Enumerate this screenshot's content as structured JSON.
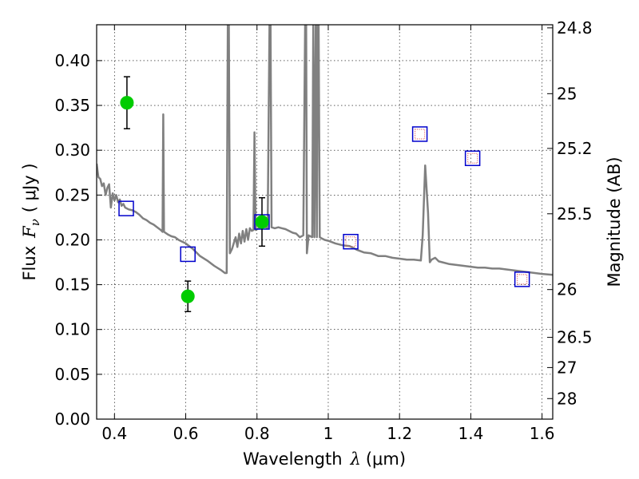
{
  "chart_data": {
    "type": "scatter",
    "xlabel_prefix": "Wavelength",
    "xlabel_symbol": "λ",
    "xlabel_unit": "(μm)",
    "ylabel_prefix": "Flux",
    "ylabel_symbol": "F",
    "ylabel_subscript": "ν",
    "ylabel_unit": "( μJy )",
    "y2label": "Magnitude (AB)",
    "xlim": [
      0.35,
      1.63
    ],
    "ylim": [
      0.0,
      0.44
    ],
    "grid": true,
    "x_ticks": [
      {
        "value": 0.4,
        "label": "0.4"
      },
      {
        "value": 0.6,
        "label": "0.6"
      },
      {
        "value": 0.8,
        "label": "0.8"
      },
      {
        "value": 1.0,
        "label": "1"
      },
      {
        "value": 1.2,
        "label": "1.2"
      },
      {
        "value": 1.4,
        "label": "1.4"
      },
      {
        "value": 1.6,
        "label": "1.6"
      }
    ],
    "y_ticks": [
      {
        "value": 0.0,
        "label": "0.00"
      },
      {
        "value": 0.05,
        "label": "0.05"
      },
      {
        "value": 0.1,
        "label": "0.10"
      },
      {
        "value": 0.15,
        "label": "0.15"
      },
      {
        "value": 0.2,
        "label": "0.20"
      },
      {
        "value": 0.25,
        "label": "0.25"
      },
      {
        "value": 0.3,
        "label": "0.30"
      },
      {
        "value": 0.35,
        "label": "0.35"
      },
      {
        "value": 0.4,
        "label": "0.40"
      }
    ],
    "y2_ticks": [
      {
        "value": 24.8,
        "label": "24.8"
      },
      {
        "value": 25.0,
        "label": "25"
      },
      {
        "value": 25.2,
        "label": "25.2"
      },
      {
        "value": 25.5,
        "label": "25.5"
      },
      {
        "value": 26.0,
        "label": "26"
      },
      {
        "value": 26.5,
        "label": "26.5"
      },
      {
        "value": 27.0,
        "label": "27"
      },
      {
        "value": 28.0,
        "label": "28"
      }
    ],
    "series": [
      {
        "kind": "line",
        "color": "#808080",
        "points": [
          [
            0.35,
            0.285
          ],
          [
            0.355,
            0.27
          ],
          [
            0.36,
            0.268
          ],
          [
            0.365,
            0.26
          ],
          [
            0.37,
            0.263
          ],
          [
            0.375,
            0.25
          ],
          [
            0.38,
            0.258
          ],
          [
            0.385,
            0.262
          ],
          [
            0.39,
            0.236
          ],
          [
            0.395,
            0.252
          ],
          [
            0.4,
            0.244
          ],
          [
            0.405,
            0.25
          ],
          [
            0.41,
            0.242
          ],
          [
            0.415,
            0.245
          ],
          [
            0.42,
            0.238
          ],
          [
            0.425,
            0.24
          ],
          [
            0.43,
            0.236
          ],
          [
            0.44,
            0.234
          ],
          [
            0.45,
            0.233
          ],
          [
            0.46,
            0.231
          ],
          [
            0.47,
            0.228
          ],
          [
            0.48,
            0.224
          ],
          [
            0.49,
            0.222
          ],
          [
            0.5,
            0.219
          ],
          [
            0.51,
            0.217
          ],
          [
            0.52,
            0.214
          ],
          [
            0.53,
            0.211
          ],
          [
            0.535,
            0.209
          ],
          [
            0.537,
            0.34
          ],
          [
            0.539,
            0.209
          ],
          [
            0.55,
            0.206
          ],
          [
            0.56,
            0.204
          ],
          [
            0.57,
            0.203
          ],
          [
            0.58,
            0.2
          ],
          [
            0.6,
            0.196
          ],
          [
            0.62,
            0.19
          ],
          [
            0.64,
            0.182
          ],
          [
            0.66,
            0.177
          ],
          [
            0.68,
            0.171
          ],
          [
            0.7,
            0.166
          ],
          [
            0.71,
            0.163
          ],
          [
            0.715,
            0.163
          ],
          [
            0.718,
            0.44
          ],
          [
            0.721,
            0.44
          ],
          [
            0.724,
            0.185
          ],
          [
            0.73,
            0.19
          ],
          [
            0.74,
            0.203
          ],
          [
            0.745,
            0.192
          ],
          [
            0.75,
            0.207
          ],
          [
            0.755,
            0.196
          ],
          [
            0.76,
            0.21
          ],
          [
            0.765,
            0.198
          ],
          [
            0.77,
            0.212
          ],
          [
            0.775,
            0.2
          ],
          [
            0.78,
            0.213
          ],
          [
            0.785,
            0.21
          ],
          [
            0.79,
            0.211
          ],
          [
            0.793,
            0.32
          ],
          [
            0.796,
            0.211
          ],
          [
            0.8,
            0.212
          ],
          [
            0.81,
            0.214
          ],
          [
            0.82,
            0.215
          ],
          [
            0.83,
            0.213
          ],
          [
            0.835,
            0.44
          ],
          [
            0.838,
            0.44
          ],
          [
            0.841,
            0.214
          ],
          [
            0.85,
            0.213
          ],
          [
            0.86,
            0.214
          ],
          [
            0.87,
            0.213
          ],
          [
            0.88,
            0.212
          ],
          [
            0.89,
            0.21
          ],
          [
            0.9,
            0.208
          ],
          [
            0.91,
            0.207
          ],
          [
            0.92,
            0.203
          ],
          [
            0.93,
            0.205
          ],
          [
            0.935,
            0.44
          ],
          [
            0.938,
            0.44
          ],
          [
            0.94,
            0.185
          ],
          [
            0.945,
            0.205
          ],
          [
            0.95,
            0.204
          ],
          [
            0.955,
            0.203
          ],
          [
            0.958,
            0.44
          ],
          [
            0.961,
            0.203
          ],
          [
            0.965,
            0.44
          ],
          [
            0.968,
            0.203
          ],
          [
            0.97,
            0.44
          ],
          [
            0.973,
            0.44
          ],
          [
            0.976,
            0.203
          ],
          [
            0.98,
            0.202
          ],
          [
            0.99,
            0.2
          ],
          [
            1.0,
            0.199
          ],
          [
            1.02,
            0.196
          ],
          [
            1.04,
            0.194
          ],
          [
            1.06,
            0.193
          ],
          [
            1.08,
            0.189
          ],
          [
            1.1,
            0.186
          ],
          [
            1.12,
            0.185
          ],
          [
            1.14,
            0.182
          ],
          [
            1.16,
            0.182
          ],
          [
            1.18,
            0.18
          ],
          [
            1.2,
            0.179
          ],
          [
            1.22,
            0.178
          ],
          [
            1.24,
            0.178
          ],
          [
            1.26,
            0.177
          ],
          [
            1.265,
            0.205
          ],
          [
            1.272,
            0.283
          ],
          [
            1.28,
            0.23
          ],
          [
            1.285,
            0.175
          ],
          [
            1.29,
            0.178
          ],
          [
            1.3,
            0.18
          ],
          [
            1.31,
            0.176
          ],
          [
            1.32,
            0.175
          ],
          [
            1.34,
            0.173
          ],
          [
            1.36,
            0.172
          ],
          [
            1.38,
            0.171
          ],
          [
            1.4,
            0.17
          ],
          [
            1.42,
            0.169
          ],
          [
            1.44,
            0.169
          ],
          [
            1.46,
            0.168
          ],
          [
            1.48,
            0.168
          ],
          [
            1.5,
            0.167
          ],
          [
            1.52,
            0.166
          ],
          [
            1.54,
            0.165
          ],
          [
            1.56,
            0.164
          ],
          [
            1.58,
            0.163
          ],
          [
            1.6,
            0.162
          ],
          [
            1.63,
            0.161
          ]
        ]
      },
      {
        "kind": "open-square",
        "color": "#0000cc",
        "points": [
          [
            0.433,
            0.235
          ],
          [
            0.606,
            0.184
          ],
          [
            0.814,
            0.22
          ],
          [
            1.063,
            0.198
          ],
          [
            1.257,
            0.318
          ],
          [
            1.405,
            0.291
          ],
          [
            1.544,
            0.156
          ]
        ]
      },
      {
        "kind": "model-marker",
        "color": "#e06060",
        "points": [
          [
            1.063,
            0.198
          ],
          [
            1.257,
            0.318
          ],
          [
            1.405,
            0.291
          ],
          [
            1.544,
            0.156
          ]
        ]
      },
      {
        "kind": "point-errorbar",
        "color": "#00cc00",
        "points": [
          {
            "x": 0.435,
            "y": 0.353,
            "yerr": 0.029
          },
          {
            "x": 0.606,
            "y": 0.137,
            "yerr": 0.017
          },
          {
            "x": 0.814,
            "y": 0.22,
            "yerr": 0.027
          }
        ]
      }
    ]
  }
}
